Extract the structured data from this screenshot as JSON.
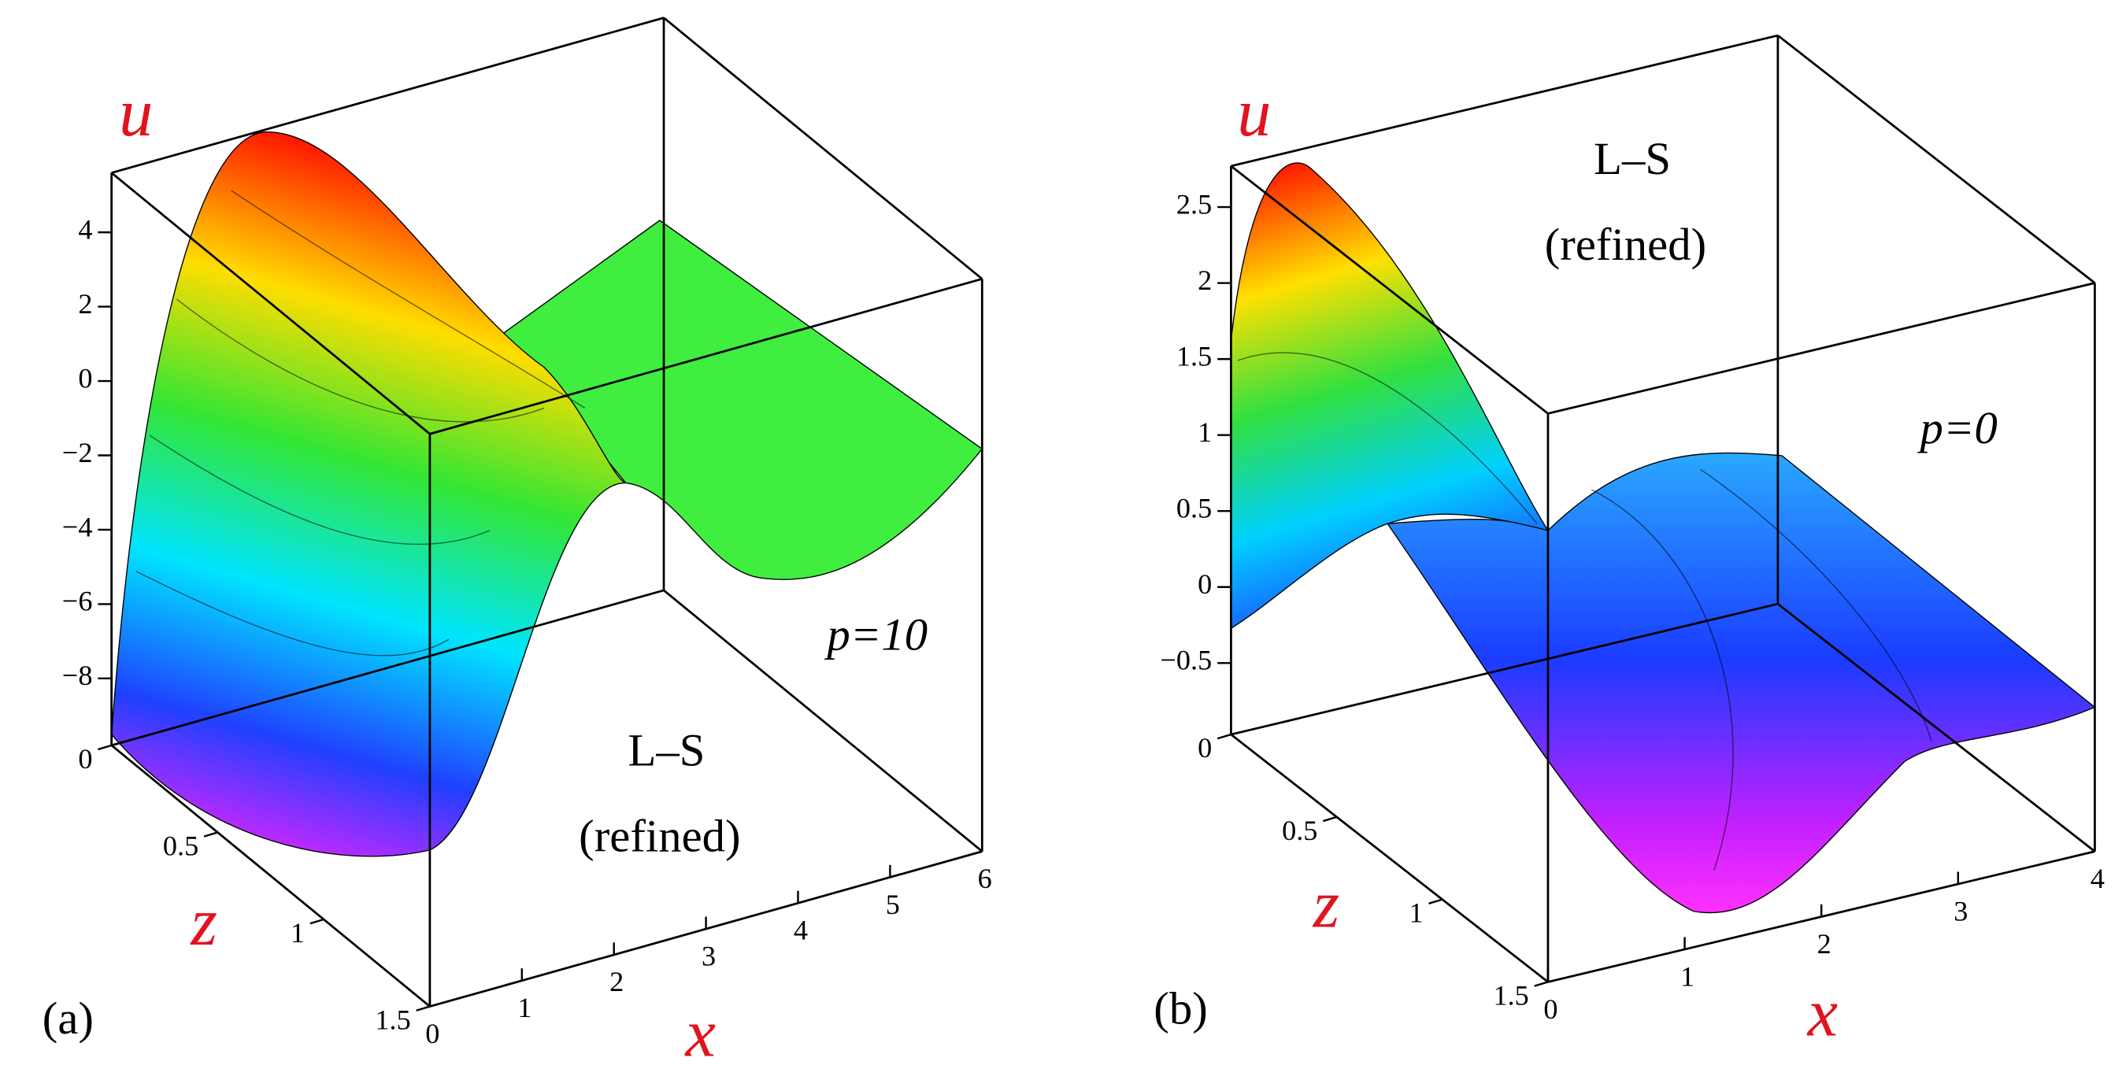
{
  "chart_data": [
    {
      "type": "surface",
      "panel_label": "(a)",
      "xlabel": "x",
      "ylabel": "z",
      "zlabel": "u",
      "annotations": [
        "L–S",
        "(refined)",
        "p=10"
      ],
      "xlim": [
        0,
        6
      ],
      "xticks": [
        0,
        1,
        2,
        3,
        4,
        5,
        6
      ],
      "ylim": [
        0,
        1.5
      ],
      "yticks": [
        0,
        0.5,
        1,
        1.5
      ],
      "zlim": [
        -9.8,
        5.6
      ],
      "zticks": [
        {
          "value": -8,
          "label": "−8"
        },
        {
          "value": -6,
          "label": "−6"
        },
        {
          "value": -4,
          "label": "−4"
        },
        {
          "value": -2,
          "label": "−2"
        },
        0,
        2,
        4
      ]
    },
    {
      "type": "surface",
      "panel_label": "(b)",
      "xlabel": "x",
      "ylabel": "z",
      "zlabel": "u",
      "annotations": [
        "L–S",
        "(refined)",
        "p=0"
      ],
      "xlim": [
        0,
        4
      ],
      "xticks": [
        0,
        1,
        2,
        3,
        4
      ],
      "ylim": [
        0,
        1.5
      ],
      "yticks": [
        0,
        0.5,
        1,
        1.5
      ],
      "zlim": [
        -0.97,
        2.77
      ],
      "zticks": [
        {
          "value": -0.5,
          "label": "−0.5"
        },
        0,
        0.5,
        1,
        1.5,
        2,
        2.5
      ]
    }
  ]
}
